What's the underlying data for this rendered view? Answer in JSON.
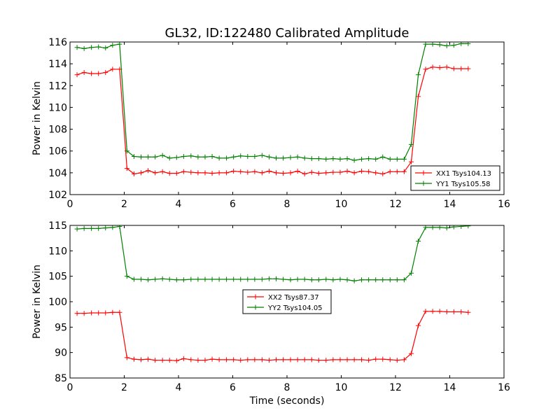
{
  "figure": {
    "title": "GL32, ID:122480 Calibrated Amplitude"
  },
  "chart_data": [
    {
      "type": "line",
      "title": "GL32, ID:122480 Calibrated Amplitude",
      "xlabel": "",
      "ylabel": "Power in Kelvin",
      "xlim": [
        0,
        16
      ],
      "ylim": [
        102,
        116
      ],
      "xticks": [
        0,
        2,
        4,
        6,
        8,
        10,
        12,
        14,
        16
      ],
      "yticks": [
        102,
        104,
        106,
        108,
        110,
        112,
        114,
        116
      ],
      "grid": false,
      "legend": "bottom-right",
      "series": [
        {
          "name": "XX1 Tsys104.13",
          "color": "#ff0000",
          "x": [
            0.26,
            0.52,
            0.79,
            1.05,
            1.31,
            1.57,
            1.83,
            2.1,
            2.36,
            2.62,
            2.88,
            3.14,
            3.41,
            3.67,
            3.93,
            4.19,
            4.46,
            4.72,
            4.98,
            5.24,
            5.5,
            5.77,
            6.03,
            6.29,
            6.55,
            6.81,
            7.08,
            7.34,
            7.6,
            7.86,
            8.13,
            8.39,
            8.65,
            8.91,
            9.17,
            9.44,
            9.7,
            9.96,
            10.22,
            10.48,
            10.75,
            11.01,
            11.27,
            11.53,
            11.8,
            12.06,
            12.32,
            12.58,
            12.84,
            13.11,
            13.37,
            13.63,
            13.89,
            14.15,
            14.42,
            14.68
          ],
          "y": [
            113.0,
            113.2,
            113.1,
            113.1,
            113.2,
            113.5,
            113.5,
            104.4,
            103.9,
            104.0,
            104.2,
            104.0,
            104.1,
            103.95,
            103.95,
            104.1,
            104.05,
            104.0,
            104.0,
            103.95,
            104.0,
            104.0,
            104.15,
            104.1,
            104.05,
            104.1,
            104.0,
            104.15,
            104.0,
            103.95,
            104.0,
            104.15,
            103.9,
            104.05,
            103.95,
            104.0,
            104.05,
            104.05,
            104.15,
            104.0,
            104.15,
            104.1,
            104.0,
            103.9,
            104.1,
            104.1,
            104.1,
            105.0,
            111.0,
            113.5,
            113.7,
            113.65,
            113.7,
            113.55,
            113.55,
            113.55
          ]
        },
        {
          "name": "YY1 Tsys105.58",
          "color": "#008000",
          "x": [
            0.26,
            0.52,
            0.79,
            1.05,
            1.31,
            1.57,
            1.83,
            2.1,
            2.36,
            2.62,
            2.88,
            3.14,
            3.41,
            3.67,
            3.93,
            4.19,
            4.46,
            4.72,
            4.98,
            5.24,
            5.5,
            5.77,
            6.03,
            6.29,
            6.55,
            6.81,
            7.08,
            7.34,
            7.6,
            7.86,
            8.13,
            8.39,
            8.65,
            8.91,
            9.17,
            9.44,
            9.7,
            9.96,
            10.22,
            10.48,
            10.75,
            11.01,
            11.27,
            11.53,
            11.8,
            12.06,
            12.32,
            12.58,
            12.84,
            13.11,
            13.37,
            13.63,
            13.89,
            14.15,
            14.42,
            14.68
          ],
          "y": [
            115.5,
            115.4,
            115.5,
            115.55,
            115.45,
            115.7,
            115.8,
            106.0,
            105.5,
            105.45,
            105.45,
            105.45,
            105.6,
            105.35,
            105.4,
            105.5,
            105.55,
            105.45,
            105.45,
            105.5,
            105.35,
            105.35,
            105.45,
            105.55,
            105.5,
            105.5,
            105.6,
            105.45,
            105.35,
            105.35,
            105.4,
            105.45,
            105.35,
            105.3,
            105.3,
            105.25,
            105.3,
            105.25,
            105.3,
            105.15,
            105.25,
            105.3,
            105.25,
            105.45,
            105.25,
            105.25,
            105.25,
            106.6,
            113.0,
            115.8,
            115.8,
            115.75,
            115.65,
            115.7,
            115.85,
            115.85
          ]
        }
      ]
    },
    {
      "type": "line",
      "title": "",
      "xlabel": "Time (seconds)",
      "ylabel": "Power in Kelvin",
      "xlim": [
        0,
        16
      ],
      "ylim": [
        85,
        115
      ],
      "xticks": [
        0,
        2,
        4,
        6,
        8,
        10,
        12,
        14,
        16
      ],
      "yticks": [
        85,
        90,
        95,
        100,
        105,
        110,
        115
      ],
      "grid": false,
      "legend": "center",
      "series": [
        {
          "name": "XX2 Tsys87.37",
          "color": "#ff0000",
          "x": [
            0.26,
            0.52,
            0.79,
            1.05,
            1.31,
            1.57,
            1.83,
            2.1,
            2.36,
            2.62,
            2.88,
            3.14,
            3.41,
            3.67,
            3.93,
            4.19,
            4.46,
            4.72,
            4.98,
            5.24,
            5.5,
            5.77,
            6.03,
            6.29,
            6.55,
            6.81,
            7.08,
            7.34,
            7.6,
            7.86,
            8.13,
            8.39,
            8.65,
            8.91,
            9.17,
            9.44,
            9.7,
            9.96,
            10.22,
            10.48,
            10.75,
            11.01,
            11.27,
            11.53,
            11.8,
            12.06,
            12.32,
            12.58,
            12.84,
            13.11,
            13.37,
            13.63,
            13.89,
            14.15,
            14.42,
            14.68
          ],
          "y": [
            97.7,
            97.7,
            97.8,
            97.8,
            97.8,
            97.9,
            97.9,
            89.0,
            88.7,
            88.6,
            88.7,
            88.5,
            88.5,
            88.5,
            88.4,
            88.8,
            88.6,
            88.5,
            88.5,
            88.7,
            88.6,
            88.6,
            88.6,
            88.5,
            88.6,
            88.6,
            88.6,
            88.5,
            88.6,
            88.6,
            88.6,
            88.6,
            88.6,
            88.6,
            88.5,
            88.5,
            88.6,
            88.6,
            88.6,
            88.6,
            88.6,
            88.5,
            88.7,
            88.7,
            88.6,
            88.5,
            88.6,
            89.8,
            95.3,
            98.1,
            98.1,
            98.1,
            98.0,
            98.0,
            98.0,
            97.9
          ]
        },
        {
          "name": "YY2 Tsys104.05",
          "color": "#008000",
          "x": [
            0.26,
            0.52,
            0.79,
            1.05,
            1.31,
            1.57,
            1.83,
            2.1,
            2.36,
            2.62,
            2.88,
            3.14,
            3.41,
            3.67,
            3.93,
            4.19,
            4.46,
            4.72,
            4.98,
            5.24,
            5.5,
            5.77,
            6.03,
            6.29,
            6.55,
            6.81,
            7.08,
            7.34,
            7.6,
            7.86,
            8.13,
            8.39,
            8.65,
            8.91,
            9.17,
            9.44,
            9.7,
            9.96,
            10.22,
            10.48,
            10.75,
            11.01,
            11.27,
            11.53,
            11.8,
            12.06,
            12.32,
            12.58,
            12.84,
            13.11,
            13.37,
            13.63,
            13.89,
            14.15,
            14.42,
            14.68
          ],
          "y": [
            114.3,
            114.4,
            114.4,
            114.4,
            114.5,
            114.6,
            114.8,
            105.0,
            104.4,
            104.4,
            104.3,
            104.4,
            104.5,
            104.4,
            104.3,
            104.3,
            104.4,
            104.4,
            104.4,
            104.4,
            104.4,
            104.4,
            104.4,
            104.4,
            104.4,
            104.4,
            104.4,
            104.5,
            104.5,
            104.4,
            104.3,
            104.4,
            104.4,
            104.3,
            104.3,
            104.4,
            104.3,
            104.4,
            104.3,
            104.1,
            104.3,
            104.3,
            104.3,
            104.3,
            104.3,
            104.3,
            104.3,
            105.6,
            111.9,
            114.6,
            114.6,
            114.6,
            114.5,
            114.7,
            114.8,
            114.9
          ]
        }
      ]
    }
  ]
}
